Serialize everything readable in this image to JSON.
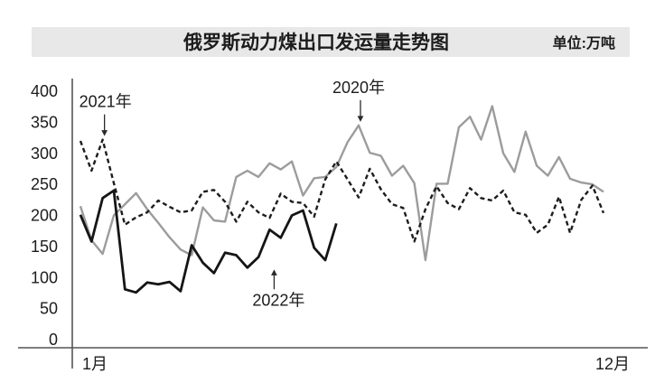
{
  "header": {
    "title": "俄罗斯动力煤出口发运量走势图",
    "unit_label": "单位:万吨",
    "band_color": "#e8e8e8",
    "text_color": "#1c1c1c"
  },
  "chart_data": {
    "type": "line",
    "title": "俄罗斯动力煤出口发运量走势图",
    "y_unit": "万吨",
    "x_axis": {
      "start_label": "1月",
      "end_label": "12月",
      "granularity": "weekly",
      "points_full_year": 48
    },
    "y_axis": {
      "min": 0,
      "max": 400,
      "tick_step": 50,
      "ticks": [
        400,
        350,
        300,
        250,
        200,
        150,
        100,
        50,
        0
      ]
    },
    "grid": false,
    "legend_style": "inline-annotations",
    "series": [
      {
        "name": "2020年",
        "color": "#9c9c9c",
        "line_style": "solid",
        "values": [
          215,
          160,
          138,
          200,
          218,
          236,
          210,
          188,
          165,
          145,
          136,
          213,
          192,
          190,
          262,
          272,
          262,
          284,
          274,
          287,
          232,
          260,
          262,
          278,
          318,
          345,
          301,
          296,
          264,
          280,
          252,
          128,
          251,
          251,
          342,
          359,
          322,
          376,
          300,
          270,
          335,
          280,
          264,
          294,
          259,
          253,
          250,
          238
        ]
      },
      {
        "name": "2021年",
        "color": "#1d1d1d",
        "line_style": "dashed",
        "values": [
          320,
          272,
          322,
          252,
          185,
          197,
          205,
          224,
          214,
          205,
          208,
          238,
          241,
          222,
          190,
          222,
          205,
          196,
          235,
          222,
          220,
          198,
          258,
          287,
          258,
          229,
          275,
          242,
          218,
          212,
          158,
          210,
          247,
          220,
          210,
          244,
          228,
          224,
          240,
          205,
          201,
          172,
          185,
          230,
          172,
          225,
          248,
          204
        ]
      },
      {
        "name": "2022年",
        "color": "#151515",
        "line_style": "solid",
        "values": [
          201,
          158,
          228,
          240,
          81,
          76,
          92,
          89,
          93,
          78,
          152,
          124,
          107,
          140,
          136,
          116,
          133,
          177,
          164,
          200,
          208,
          148,
          128,
          187
        ]
      }
    ],
    "annotations": [
      {
        "label": "2021年",
        "series": "2021年",
        "point_index": 2,
        "direction": "down",
        "dx": 3
      },
      {
        "label": "2020年",
        "series": "2020年",
        "point_index": 25,
        "direction": "down",
        "dx": 0
      },
      {
        "label": "2022年",
        "series": "2022年",
        "point_index": 17,
        "direction": "up",
        "dx": 10
      }
    ]
  }
}
